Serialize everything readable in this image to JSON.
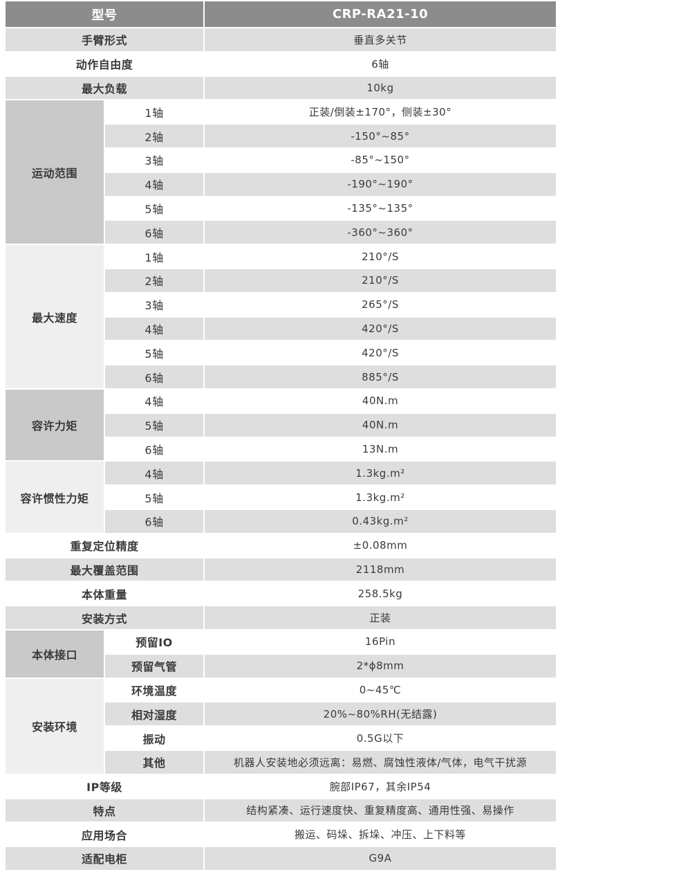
{
  "header": {
    "label": "型号",
    "value": "CRP-RA21-10"
  },
  "rows": [
    {
      "label": "手臂形式",
      "value": "垂直多关节"
    },
    {
      "label": "动作自由度",
      "value": "6轴"
    },
    {
      "label": "最大负载",
      "value": "10kg"
    },
    {
      "group": "运动范围",
      "tone": "dark",
      "bold_sub": false,
      "items": [
        {
          "label": "1轴",
          "value": "正装/倒装±170°，侧装±30°"
        },
        {
          "label": "2轴",
          "value": "-150°~85°"
        },
        {
          "label": "3轴",
          "value": "-85°~150°"
        },
        {
          "label": "4轴",
          "value": "-190°~190°"
        },
        {
          "label": "5轴",
          "value": "-135°~135°"
        },
        {
          "label": "6轴",
          "value": "-360°~360°"
        }
      ]
    },
    {
      "group": "最大速度",
      "tone": "light",
      "bold_sub": false,
      "items": [
        {
          "label": "1轴",
          "value": "210°/S"
        },
        {
          "label": "2轴",
          "value": "210°/S"
        },
        {
          "label": "3轴",
          "value": "265°/S"
        },
        {
          "label": "4轴",
          "value": "420°/S"
        },
        {
          "label": "5轴",
          "value": "420°/S"
        },
        {
          "label": "6轴",
          "value": "885°/S"
        }
      ]
    },
    {
      "group": "容许力矩",
      "tone": "dark",
      "bold_sub": false,
      "items": [
        {
          "label": "4轴",
          "value": "40N.m"
        },
        {
          "label": "5轴",
          "value": "40N.m"
        },
        {
          "label": "6轴",
          "value": "13N.m"
        }
      ]
    },
    {
      "group": "容许惯性力矩",
      "tone": "light",
      "bold_sub": false,
      "items": [
        {
          "label": "4轴",
          "value": "1.3kg.m²"
        },
        {
          "label": "5轴",
          "value": "1.3kg.m²"
        },
        {
          "label": "6轴",
          "value": "0.43kg.m²"
        }
      ]
    },
    {
      "label": "重复定位精度",
      "value": "±0.08mm"
    },
    {
      "label": "最大覆盖范围",
      "value": "2118mm"
    },
    {
      "label": "本体重量",
      "value": "258.5kg"
    },
    {
      "label": "安装方式",
      "value": "正装"
    },
    {
      "group": "本体接口",
      "tone": "dark",
      "bold_sub": true,
      "items": [
        {
          "label": "预留IO",
          "value": "16Pin"
        },
        {
          "label": "预留气管",
          "value": "2*ϕ8mm"
        }
      ]
    },
    {
      "group": "安装环境",
      "tone": "light",
      "bold_sub": true,
      "items": [
        {
          "label": "环境温度",
          "value": "0~45℃"
        },
        {
          "label": "相对湿度",
          "value": "20%~80%RH(无结露)"
        },
        {
          "label": "振动",
          "value": "0.5G以下"
        },
        {
          "label": "其他",
          "value": "机器人安装地必须远离：易燃、腐蚀性液体/气体，电气干扰源"
        }
      ]
    },
    {
      "label": "IP等级",
      "value": "腕部IP67，其余IP54"
    },
    {
      "label": "特点",
      "value": "结构紧凑、运行速度快、重复精度高、通用性强、易操作"
    },
    {
      "label": "应用场合",
      "value": "搬运、码垛、拆垛、冲压、上下料等"
    },
    {
      "label": "适配电柜",
      "value": "G9A"
    }
  ]
}
